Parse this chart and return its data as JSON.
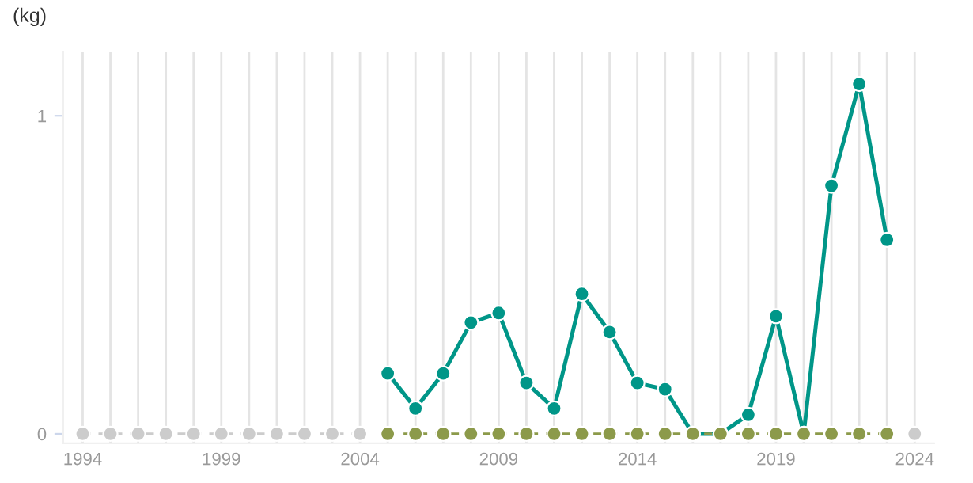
{
  "chart_data": {
    "type": "line",
    "ylabel": "(kg)",
    "xlim": [
      1993.3,
      2024.7
    ],
    "ylim": [
      -0.03,
      1.2
    ],
    "xticks": [
      1994,
      {
        "value": 1995,
        "label": null
      },
      {
        "value": 1996,
        "label": null
      },
      {
        "value": 1997,
        "label": null
      },
      {
        "value": 1998,
        "label": null
      },
      1999,
      {
        "value": 2000,
        "label": null
      },
      {
        "value": 2001,
        "label": null
      },
      {
        "value": 2002,
        "label": null
      },
      {
        "value": 2003,
        "label": null
      },
      2004,
      {
        "value": 2005,
        "label": null
      },
      {
        "value": 2006,
        "label": null
      },
      {
        "value": 2007,
        "label": null
      },
      {
        "value": 2008,
        "label": null
      },
      2009,
      {
        "value": 2010,
        "label": null
      },
      {
        "value": 2011,
        "label": null
      },
      {
        "value": 2012,
        "label": null
      },
      {
        "value": 2013,
        "label": null
      },
      2014,
      {
        "value": 2015,
        "label": null
      },
      {
        "value": 2016,
        "label": null
      },
      {
        "value": 2017,
        "label": null
      },
      {
        "value": 2018,
        "label": null
      },
      2019,
      {
        "value": 2020,
        "label": null
      },
      {
        "value": 2021,
        "label": null
      },
      {
        "value": 2022,
        "label": null
      },
      {
        "value": 2023,
        "label": null
      },
      2024
    ],
    "yticks": [
      0,
      1
    ],
    "grid": "x",
    "marker": "circle",
    "series": [
      {
        "color": "#cccccc",
        "line_style": "dashed",
        "x": [
          1994,
          1995,
          1996,
          1997,
          1998,
          1999,
          2000,
          2001,
          2002,
          2003,
          2004
        ],
        "values": [
          0,
          0,
          0,
          0,
          0,
          0,
          0,
          0,
          0,
          0,
          0
        ]
      },
      {
        "color": "#cccccc",
        "line_style": "dashed",
        "x": [
          2024
        ],
        "values": [
          0
        ]
      },
      {
        "color": "#009688",
        "line_style": "solid",
        "x": [
          2005,
          2006,
          2007,
          2008,
          2009,
          2010,
          2011,
          2012,
          2013,
          2014,
          2015,
          2016,
          2017,
          2018,
          2019,
          2020,
          2021,
          2022,
          2023
        ],
        "values": [
          0.19,
          0.08,
          0.19,
          0.35,
          0.38,
          0.16,
          0.08,
          0.44,
          0.32,
          0.16,
          0.14,
          0,
          0,
          0.06,
          0.37,
          0,
          0.78,
          1.1,
          0.61
        ]
      },
      {
        "color": "#8c9a4a",
        "line_style": "dashed",
        "x": [
          2005,
          2006,
          2007,
          2008,
          2009,
          2010,
          2011,
          2012,
          2013,
          2014,
          2015,
          2016,
          2017,
          2018,
          2019,
          2020,
          2021,
          2022,
          2023
        ],
        "values": [
          0,
          0,
          0,
          0,
          0,
          0,
          0,
          0,
          0,
          0,
          0,
          0,
          0,
          0,
          0,
          0,
          0,
          0,
          0
        ]
      }
    ]
  }
}
